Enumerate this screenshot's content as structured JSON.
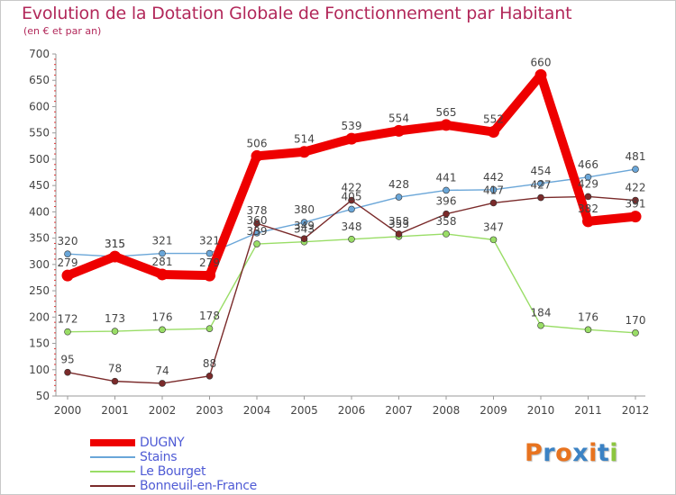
{
  "header": {
    "title": "Evolution de la Dotation Globale de Fonctionnement par Habitant",
    "subtitle": "(en € et par an)"
  },
  "chart_data": {
    "type": "line",
    "title": "Evolution de la Dotation Globale de Fonctionnement par Habitant",
    "subtitle": "(en € et par an)",
    "xlabel": "",
    "ylabel": "",
    "ylim": [
      50,
      700
    ],
    "yticks": [
      50,
      100,
      150,
      200,
      250,
      300,
      350,
      400,
      450,
      500,
      550,
      600,
      650,
      700
    ],
    "grid": false,
    "categories": [
      "2000",
      "2001",
      "2002",
      "2003",
      "2004",
      "2005",
      "2006",
      "2007",
      "2008",
      "2009",
      "2010",
      "2011",
      "2012"
    ],
    "series": [
      {
        "name": "DUGNY",
        "color": "#ee0000",
        "values": [
          279,
          315,
          281,
          279,
          506,
          514,
          539,
          554,
          565,
          552,
          660,
          382,
          391
        ]
      },
      {
        "name": "Stains",
        "color": "#6aa6d8",
        "values": [
          320,
          315,
          321,
          321,
          360,
          380,
          405,
          428,
          441,
          442,
          454,
          466,
          481
        ]
      },
      {
        "name": "Le Bourget",
        "color": "#99dd66",
        "values": [
          172,
          173,
          176,
          178,
          339,
          343,
          348,
          353,
          358,
          347,
          184,
          176,
          170
        ]
      },
      {
        "name": "Bonneuil-en-France",
        "color": "#7a2a2a",
        "values": [
          95,
          78,
          74,
          88,
          378,
          349,
          422,
          358,
          396,
          417,
          427,
          429,
          422
        ]
      }
    ]
  },
  "legend": {
    "items": [
      {
        "label": "DUGNY",
        "color": "#ee0000"
      },
      {
        "label": "Stains",
        "color": "#6aa6d8"
      },
      {
        "label": "Le Bourget",
        "color": "#99dd66"
      },
      {
        "label": "Bonneuil-en-France",
        "color": "#7a2a2a"
      }
    ]
  },
  "logo": {
    "text": "Proxiti",
    "colors": [
      "#e8731f",
      "#3b82c4",
      "#e8731f",
      "#3b82c4",
      "#e8731f",
      "#3b82c4",
      "#8cc63f"
    ]
  }
}
